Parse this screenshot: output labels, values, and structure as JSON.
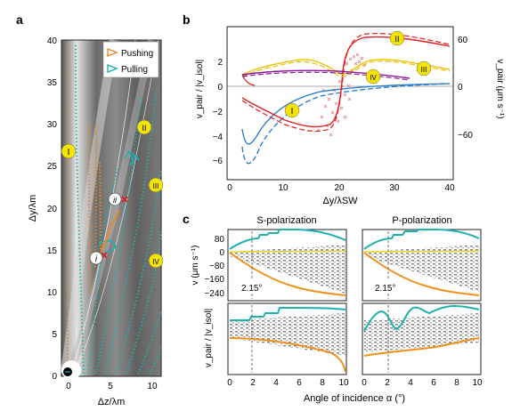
{
  "figure": {
    "panel_labels": [
      "a",
      "b",
      "c"
    ]
  },
  "panel_a": {
    "ylabel": "Δy/λm",
    "xlabel": "Δz/λm",
    "legend": [
      {
        "label": "Pushing",
        "color": "#e8892a",
        "marker": "orange-triangle-icon"
      },
      {
        "label": "Pulling",
        "color": "#1fb0b0",
        "marker": "teal-triangle-icon"
      }
    ],
    "region_labels": [
      "I",
      "II",
      "III",
      "IV"
    ],
    "point_labels": [
      "i",
      "ii"
    ],
    "x_ticks": [
      "0",
      "5",
      "10"
    ],
    "y_ticks": [
      "0",
      "5",
      "10",
      "15",
      "20",
      "25",
      "30",
      "35",
      "40"
    ],
    "colors": {
      "pushing": "#e8892a",
      "pulling": "#1fb0b0",
      "badge": "#f2e300",
      "marker": "#e02020"
    }
  },
  "panel_b": {
    "ylabel_left": "v_pair / |v_isol|",
    "ylabel_right": "v_pair (μm s⁻¹)",
    "xlabel": "Δy/λSW",
    "x_ticks": [
      "0",
      "10",
      "20",
      "30",
      "40"
    ],
    "y_ticks_left": [
      "2",
      "0",
      "−2",
      "−4",
      "−6"
    ],
    "y_ticks_right": [
      "60",
      "0",
      "−60"
    ],
    "region_labels": [
      "I",
      "II",
      "III",
      "IV"
    ],
    "colors": {
      "I": "#e02020",
      "II": "#e02020",
      "III": "#f0c000",
      "IV": "#8a1a9a",
      "blue": "#1f78c8"
    }
  },
  "panel_c": {
    "titles": [
      "S-polarization",
      "P-polarization"
    ],
    "ylabel_top": "v (μm s⁻¹)",
    "ylabel_bottom": "v_pair / |v_isol|",
    "xlabel": "Angle of incidence α (°)",
    "y_ticks_top": [
      "80",
      "0",
      "−80",
      "−160",
      "−240"
    ],
    "x_ticks": [
      "0",
      "2",
      "4",
      "6",
      "8",
      "10"
    ],
    "x_ticks_right": [
      "0",
      "2",
      "4",
      "6",
      "8",
      "10"
    ],
    "angle_annotation": "2.15°",
    "colors": {
      "upper": "#1fb0b0",
      "lower": "#f0901a",
      "mid": "#e8d000"
    }
  }
}
